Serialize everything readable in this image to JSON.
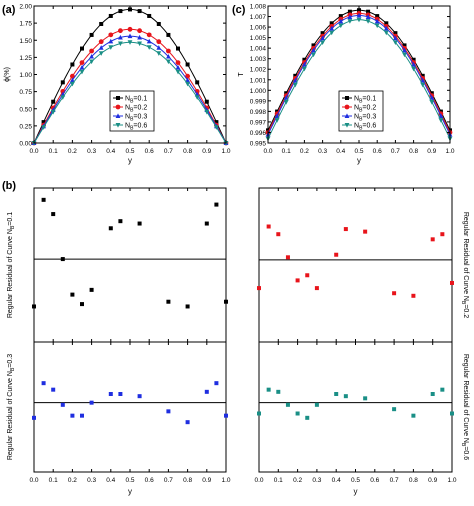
{
  "panel_labels": {
    "a": "(a)",
    "b": "(b)",
    "c": "(c)"
  },
  "colors": {
    "s1": "#000000",
    "s2": "#e8141b",
    "s3": "#1f2ee0",
    "s4": "#1a8f86"
  },
  "chart_data": [
    {
      "type": "line",
      "panel": "(a)",
      "title": "",
      "xlabel": "y",
      "ylabel": "ϕ(%)",
      "xlim": [
        0,
        1
      ],
      "ylim": [
        0,
        2
      ],
      "xticks": [
        "0.0",
        "0.1",
        "0.2",
        "0.3",
        "0.4",
        "0.5",
        "0.6",
        "0.7",
        "0.8",
        "0.9",
        "1.0"
      ],
      "yticks": [
        "0.00",
        "0.25",
        "0.50",
        "0.75",
        "1.00",
        "1.25",
        "1.50",
        "1.75",
        "2.00"
      ],
      "legend_position": "bottom-center",
      "series": [
        {
          "name": "NB=0.1",
          "marker": "square",
          "amplitude": 1.95
        },
        {
          "name": "NB=0.2",
          "marker": "circle",
          "amplitude": 1.66
        },
        {
          "name": "NB=0.3",
          "marker": "triangle-up",
          "amplitude": 1.56
        },
        {
          "name": "NB=0.6",
          "marker": "triangle-down",
          "amplitude": 1.47
        }
      ],
      "markers_x": [
        0,
        0.05,
        0.1,
        0.15,
        0.2,
        0.25,
        0.3,
        0.35,
        0.4,
        0.45,
        0.5,
        0.55,
        0.6,
        0.65,
        0.7,
        0.75,
        0.8,
        0.85,
        0.9,
        0.95,
        1.0
      ],
      "curve_shape": "amplitude * sin(pi * y)"
    },
    {
      "type": "line",
      "panel": "(c)",
      "title": "",
      "xlabel": "y",
      "ylabel": "T",
      "xlim": [
        0,
        1
      ],
      "ylim": [
        0.995,
        1.008
      ],
      "xticks": [
        "0.0",
        "0.1",
        "0.2",
        "0.3",
        "0.4",
        "0.5",
        "0.6",
        "0.7",
        "0.8",
        "0.9",
        "1.0"
      ],
      "yticks": [
        "0.995",
        "0.996",
        "0.997",
        "0.998",
        "0.999",
        "1.000",
        "1.001",
        "1.002",
        "1.003",
        "1.004",
        "1.005",
        "1.006",
        "1.007",
        "1.008"
      ],
      "legend_position": "bottom-center",
      "series": [
        {
          "name": "NB=0.1",
          "marker": "square",
          "base": 0.9962,
          "peak": 1.0076
        },
        {
          "name": "NB=0.2",
          "marker": "circle",
          "base": 0.996,
          "peak": 1.0073
        },
        {
          "name": "NB=0.3",
          "marker": "triangle-up",
          "base": 0.9958,
          "peak": 1.0071
        },
        {
          "name": "NB=0.6",
          "marker": "triangle-down",
          "base": 0.9954,
          "peak": 1.0067
        }
      ],
      "markers_x": [
        0,
        0.05,
        0.1,
        0.15,
        0.2,
        0.25,
        0.3,
        0.35,
        0.4,
        0.45,
        0.5,
        0.55,
        0.6,
        0.65,
        0.7,
        0.75,
        0.8,
        0.85,
        0.9,
        0.95,
        1.0
      ],
      "curve_shape": "base + (peak - base) * sin(pi * y)"
    },
    {
      "type": "scatter",
      "panel": "(b)",
      "title": "",
      "xlabel": "",
      "ylabel": "Regular Residual of Curve NB=0.1",
      "ylim": [
        -0.035,
        0.03
      ],
      "zero_line": true,
      "marker": "square",
      "x": [
        0,
        0.05,
        0.1,
        0.15,
        0.2,
        0.25,
        0.3,
        0.4,
        0.45,
        0.55,
        0.7,
        0.8,
        0.9,
        0.95,
        1.0
      ],
      "y": [
        -0.02,
        0.025,
        0.019,
        0.0,
        -0.015,
        -0.019,
        -0.013,
        0.013,
        0.016,
        0.015,
        -0.018,
        -0.02,
        0.015,
        0.023,
        -0.018
      ]
    },
    {
      "type": "scatter",
      "panel": "(b)",
      "title": "",
      "xlabel": "",
      "ylabel": "Regular Residual of Curve NB=0.2",
      "ylim": [
        -0.032,
        0.028
      ],
      "zero_line": true,
      "marker": "square",
      "x": [
        0,
        0.05,
        0.1,
        0.15,
        0.2,
        0.25,
        0.3,
        0.4,
        0.45,
        0.55,
        0.7,
        0.8,
        0.9,
        0.95,
        1.0
      ],
      "y": [
        -0.011,
        0.013,
        0.01,
        0.001,
        -0.008,
        -0.006,
        -0.011,
        0.002,
        0.012,
        0.011,
        -0.013,
        -0.014,
        0.008,
        0.01,
        -0.009
      ]
    },
    {
      "type": "scatter",
      "panel": "(b)",
      "title": "",
      "xlabel": "y",
      "ylabel": "Regular Residual of Curve NB=0.3",
      "ylim": [
        -0.032,
        0.028
      ],
      "zero_line": true,
      "marker": "square",
      "x": [
        0,
        0.05,
        0.1,
        0.15,
        0.2,
        0.25,
        0.3,
        0.4,
        0.45,
        0.55,
        0.7,
        0.8,
        0.9,
        0.95,
        1.0
      ],
      "y": [
        -0.007,
        0.009,
        0.006,
        -0.001,
        -0.006,
        -0.006,
        0.0,
        0.004,
        0.004,
        0.003,
        -0.004,
        -0.009,
        0.005,
        0.009,
        -0.006
      ]
    },
    {
      "type": "scatter",
      "panel": "(b)",
      "title": "",
      "xlabel": "y",
      "ylabel": "Regular Residual of Curve NB=0.6",
      "ylim": [
        -0.032,
        0.028
      ],
      "zero_line": true,
      "marker": "square",
      "x": [
        0,
        0.05,
        0.1,
        0.15,
        0.2,
        0.25,
        0.3,
        0.4,
        0.45,
        0.55,
        0.7,
        0.8,
        0.9,
        0.95,
        1.0
      ],
      "y": [
        -0.005,
        0.006,
        0.005,
        -0.001,
        -0.005,
        -0.007,
        -0.001,
        0.004,
        0.003,
        0.002,
        -0.003,
        -0.006,
        0.004,
        0.006,
        -0.005
      ]
    }
  ]
}
